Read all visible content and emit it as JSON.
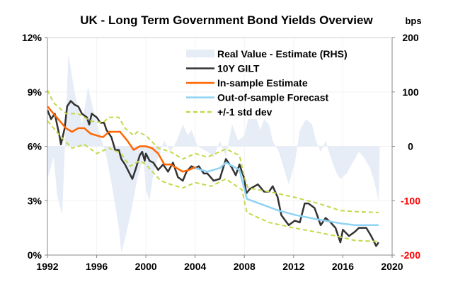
{
  "chart_data": {
    "type": "line",
    "title": "UK - Long Term Government Bond Yields Overview",
    "right_axis_unit": "bps",
    "x_ticks": [
      "1992",
      "1996",
      "2000",
      "2004",
      "2008",
      "2012",
      "2016",
      "2020"
    ],
    "xlim": [
      1992,
      2020
    ],
    "y_left": {
      "ticks": [
        "0%",
        "3%",
        "6%",
        "9%",
        "12%"
      ],
      "ylim": [
        0,
        12
      ]
    },
    "y_right": {
      "ticks": [
        "-200",
        "-100",
        "0",
        "100",
        "200"
      ],
      "ylim": [
        -200,
        200
      ],
      "negative_tick_color": "#ff0000"
    },
    "grid": true,
    "legend_placement": "top-right",
    "series": [
      {
        "name": "Real Value - Estimate (RHS)",
        "kind": "area",
        "axis": "right",
        "color": "#e6edf6",
        "x": [
          1992,
          1992.5,
          1992.8,
          1993.2,
          1993.7,
          1994.2,
          1994.8,
          1995.3,
          1995.8,
          1996.3,
          1996.8,
          1997.3,
          1997.8,
          1998.0,
          1998.3,
          1998.8,
          1999.3,
          1999.8,
          2000,
          2000.3,
          2000.6,
          2001,
          2001.5,
          2002,
          2002.5,
          2003,
          2003.4,
          2003.7,
          2004.2,
          2005,
          2005.5,
          2006,
          2006.5,
          2007,
          2007.5,
          2008,
          2008.3,
          2009,
          2009.3,
          2009.6,
          2010,
          2010.3,
          2010.8,
          2011.2,
          2011.6,
          2012.1,
          2012.5,
          2013,
          2013.5,
          2013.8,
          2014.2,
          2014.6,
          2015,
          2015.5,
          2015.8,
          2016.3,
          2016.8,
          2017.3,
          2017.7,
          2018.2,
          2018.5,
          2018.9,
          2019.0
        ],
        "y": [
          -60,
          -20,
          -90,
          -127,
          170,
          100,
          40,
          110,
          60,
          20,
          -20,
          -80,
          -150,
          -195,
          -170,
          -120,
          -60,
          -20,
          -80,
          -100,
          -50,
          -20,
          10,
          -10,
          10,
          40,
          20,
          30,
          0,
          -10,
          -20,
          10,
          -20,
          40,
          10,
          20,
          50,
          50,
          30,
          50,
          40,
          10,
          -10,
          -40,
          -70,
          -30,
          30,
          50,
          40,
          10,
          -10,
          10,
          -20,
          -50,
          -60,
          -50,
          -30,
          -10,
          -20,
          -40,
          -60,
          -100,
          0
        ]
      },
      {
        "name": "10Y GILT",
        "kind": "line",
        "axis": "left",
        "color": "#333333",
        "x": [
          1992,
          1992.3,
          1992.6,
          1993.0,
          1993.1,
          1993.4,
          1993.6,
          1993.9,
          1994.2,
          1994.5,
          1994.8,
          1995.2,
          1995.4,
          1995.6,
          1996.0,
          1996.3,
          1996.6,
          1996.8,
          1997.2,
          1997.5,
          1997.8,
          1998.0,
          1998.3,
          1998.6,
          1998.9,
          1999.2,
          1999.5,
          1999.7,
          1999.9,
          2000.0,
          2000.3,
          2000.6,
          2001.0,
          2001.4,
          2001.8,
          2002.2,
          2002.6,
          2003.0,
          2003.3,
          2003.7,
          2004.0,
          2004.3,
          2004.7,
          2005.0,
          2005.5,
          2006.0,
          2006.5,
          2007.0,
          2007.3,
          2007.6,
          2008.0,
          2008.15,
          2008.45,
          2009.1,
          2009.6,
          2010.0,
          2010.3,
          2010.7,
          2011.0,
          2011.6,
          2012.1,
          2012.5,
          2012.9,
          2013.2,
          2013.7,
          2014.2,
          2014.6,
          2015.0,
          2015.4,
          2015.8,
          2016.0,
          2016.5,
          2017.0,
          2017.3,
          2017.9,
          2018.3,
          2018.7,
          2018.9
        ],
        "y": [
          8.0,
          7.5,
          7.8,
          6.5,
          6.1,
          7.0,
          8.2,
          8.5,
          8.3,
          8.2,
          7.8,
          7.6,
          7.2,
          7.8,
          7.6,
          7.3,
          7.3,
          6.9,
          6.5,
          5.8,
          5.8,
          5.3,
          5.0,
          4.6,
          4.2,
          4.8,
          5.5,
          5.7,
          5.2,
          5.6,
          5.2,
          5.1,
          4.7,
          5.0,
          4.6,
          5.1,
          4.3,
          4.1,
          4.6,
          4.9,
          4.8,
          4.9,
          4.5,
          4.5,
          4.1,
          4.2,
          5.3,
          4.8,
          4.4,
          5.0,
          4.2,
          3.4,
          3.65,
          3.9,
          3.5,
          3.5,
          3.8,
          3.2,
          2.2,
          1.65,
          1.9,
          1.8,
          2.85,
          2.85,
          2.6,
          1.65,
          2.05,
          1.8,
          1.5,
          0.7,
          1.4,
          1.05,
          1.3,
          1.5,
          1.5,
          1.05,
          0.5,
          0.7
        ]
      },
      {
        "name": "In-sample Estimate",
        "kind": "line",
        "axis": "left",
        "color": "#ff6600",
        "x": [
          1992,
          1992.5,
          1993,
          1993.5,
          1994,
          1994.5,
          1995,
          1995.5,
          1996,
          1996.5,
          1997,
          1997.5,
          1997.9,
          1998.5,
          1999,
          1999.5,
          2000,
          2000.5,
          2001,
          2001.5,
          2002,
          2002.5,
          2003,
          2003.5,
          2004
        ],
        "y": [
          8.2,
          7.8,
          7.4,
          7.0,
          6.8,
          7.0,
          7.0,
          6.7,
          6.6,
          6.5,
          6.8,
          6.8,
          6.8,
          6.3,
          5.8,
          6.0,
          6.0,
          5.9,
          5.6,
          5.0,
          5.0,
          4.8,
          4.6,
          4.7,
          4.85
        ]
      },
      {
        "name": "Out-of-sample Forecast",
        "kind": "line",
        "axis": "left",
        "color": "#8fd3f4",
        "x": [
          2004,
          2005,
          2006,
          2006.5,
          2007.6,
          2008.2,
          2010.8,
          2012.2,
          2014.1,
          2015.8,
          2017,
          2018.9
        ],
        "y": [
          4.8,
          4.6,
          4.8,
          5.1,
          4.7,
          3.1,
          2.45,
          2.2,
          1.95,
          1.75,
          1.65,
          1.65
        ]
      },
      {
        "name": "+/-1 std dev",
        "kind": "dashed",
        "axis": "left",
        "color": "#c5d84a",
        "x": [
          1992,
          1992.5,
          1993.5,
          1994.5,
          1995.5,
          1996.5,
          1997,
          1997.8,
          1998.3,
          1999,
          1999.3,
          2000,
          2001,
          2002,
          2003,
          2004,
          2005,
          2006.5,
          2007.6,
          2008.0,
          2008.3,
          2010,
          2012,
          2014,
          2015.8,
          2017,
          2018.9
        ],
        "y": [
          9.1,
          8.4,
          7.8,
          7.8,
          7.4,
          7.3,
          7.6,
          7.6,
          7.0,
          6.6,
          6.8,
          6.6,
          5.9,
          5.7,
          5.3,
          5.6,
          5.4,
          5.85,
          5.5,
          4.3,
          3.7,
          3.5,
          3.2,
          2.85,
          2.45,
          2.4,
          2.35
        ]
      },
      {
        "name": "",
        "kind": "dashed",
        "axis": "left",
        "color": "#c5d84a",
        "x": [
          1992,
          1993,
          1994,
          1995,
          1996,
          1997,
          1998,
          1998.7,
          1999.5,
          2000,
          2001.2,
          2002,
          2003,
          2004,
          2005.3,
          2006.5,
          2007.8,
          2008.2,
          2010,
          2012,
          2014,
          2015.8,
          2017,
          2018.9
        ],
        "y": [
          7.4,
          6.6,
          5.9,
          6.1,
          5.6,
          5.9,
          5.6,
          4.9,
          5.2,
          5.0,
          4.1,
          3.9,
          3.7,
          4.0,
          3.8,
          4.2,
          3.6,
          2.35,
          1.8,
          1.5,
          1.25,
          1.0,
          0.8,
          0.75
        ]
      }
    ]
  }
}
